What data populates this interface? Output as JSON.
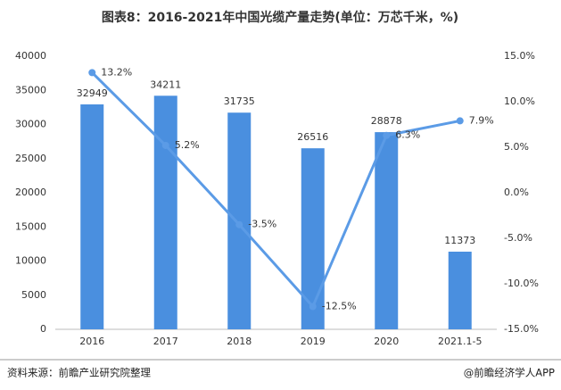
{
  "chart_data": {
    "type": "bar-line",
    "title": "图表8：2016-2021年中国光缆产量走势(单位：万芯千米，%)",
    "source": "资料来源：前瞻产业研究院整理",
    "credit": "@前瞻经济学人APP",
    "categories": [
      "2016",
      "2017",
      "2018",
      "2019",
      "2020",
      "2021.1-5"
    ],
    "series": [
      {
        "type": "bar",
        "color": "#4a8fdf",
        "values": [
          32949,
          34211,
          31735,
          26516,
          28878,
          11373
        ]
      },
      {
        "type": "line",
        "axis": "y2",
        "color": "#5b9be6",
        "values": [
          13.2,
          5.2,
          -3.5,
          -12.5,
          6.3,
          7.9
        ],
        "value_labels": [
          "13.2%",
          "5.2%",
          "-3.5%",
          "-12.5%",
          "6.3%",
          "7.9%"
        ]
      }
    ],
    "ylim": [
      0,
      40000
    ],
    "yticks": [
      0,
      5000,
      10000,
      15000,
      20000,
      25000,
      30000,
      35000,
      40000
    ],
    "y2lim": [
      -15,
      15
    ],
    "y2ticks": [
      {
        "value": -15,
        "label": "-15.0%"
      },
      {
        "value": -10,
        "label": "-10.0%"
      },
      {
        "value": -5,
        "label": "-5.0%"
      },
      {
        "value": 0,
        "label": "0.0%"
      },
      {
        "value": 5,
        "label": "5.0%"
      },
      {
        "value": 10,
        "label": "10.0%"
      },
      {
        "value": 15,
        "label": "15.0%"
      }
    ]
  }
}
